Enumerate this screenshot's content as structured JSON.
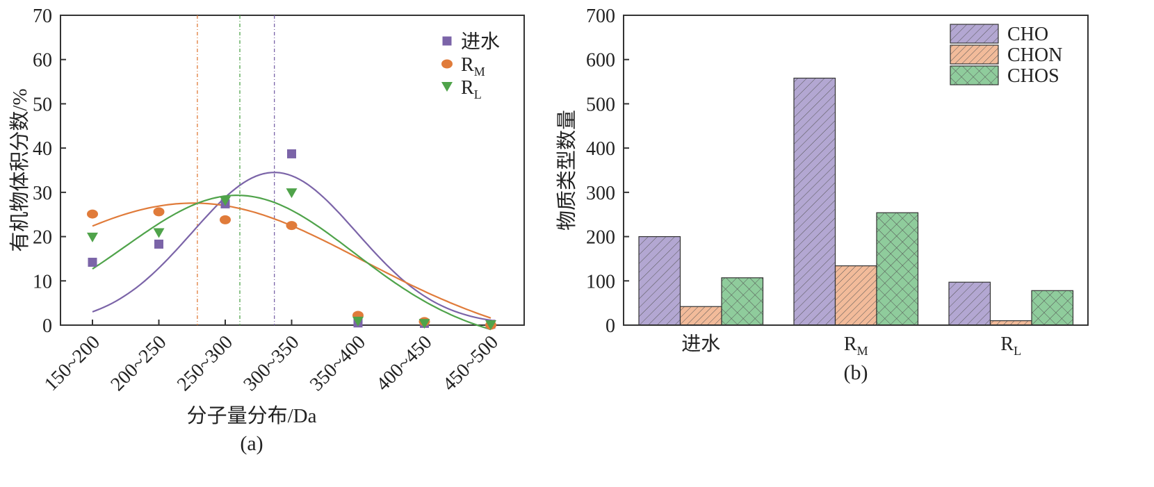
{
  "chart_data": [
    {
      "type": "scatter",
      "panel_label": "(a)",
      "xlabel": "分子量分布/Da",
      "ylabel": "有机物体积分数/%",
      "categories": [
        "150~200",
        "200~250",
        "250~300",
        "300~350",
        "350~400",
        "400~450",
        "450~500"
      ],
      "ylim": [
        0,
        70
      ],
      "yticks": [
        0,
        10,
        20,
        30,
        40,
        50,
        60,
        70
      ],
      "legend_position": "top-right",
      "series": [
        {
          "name": "进水",
          "name_sub": "",
          "marker": "square",
          "color": "#7b64a8",
          "values": [
            14.2,
            18.3,
            27.4,
            38.7,
            0.5,
            0.4,
            0.2
          ],
          "fit_peak_x": 312,
          "fit_peak_y": 34.5
        },
        {
          "name": "R",
          "name_sub": "M",
          "marker": "circle",
          "color": "#e07b3a",
          "values": [
            25.1,
            25.6,
            23.8,
            22.5,
            2.2,
            0.8,
            0.0
          ],
          "fit_peak_x": 254,
          "fit_peak_y": 27.8
        },
        {
          "name": "R",
          "name_sub": "L",
          "marker": "triangle-down",
          "color": "#4fa34a",
          "values": [
            19.8,
            20.8,
            28.0,
            29.8,
            0.8,
            0.3,
            0.0
          ],
          "fit_peak_x": 286,
          "fit_peak_y": 29.8
        }
      ],
      "grid": false
    },
    {
      "type": "bar",
      "panel_label": "(b)",
      "xlabel": "",
      "ylabel": "物质类型数量",
      "categories": [
        {
          "main": "进水",
          "sub": ""
        },
        {
          "main": "R",
          "sub": "M"
        },
        {
          "main": "R",
          "sub": "L"
        }
      ],
      "ylim": [
        0,
        700
      ],
      "yticks": [
        0,
        100,
        200,
        300,
        400,
        500,
        600,
        700
      ],
      "legend_position": "top-right",
      "series": [
        {
          "name": "CHO",
          "color": "#b3a7d2",
          "hatch": "forward",
          "values": [
            200,
            558,
            97
          ]
        },
        {
          "name": "CHON",
          "color": "#f2bb9a",
          "hatch": "forward-dense",
          "values": [
            42,
            134,
            10
          ]
        },
        {
          "name": "CHOS",
          "color": "#8fcc9c",
          "hatch": "cross",
          "values": [
            107,
            254,
            78
          ]
        }
      ],
      "grid": false
    }
  ]
}
